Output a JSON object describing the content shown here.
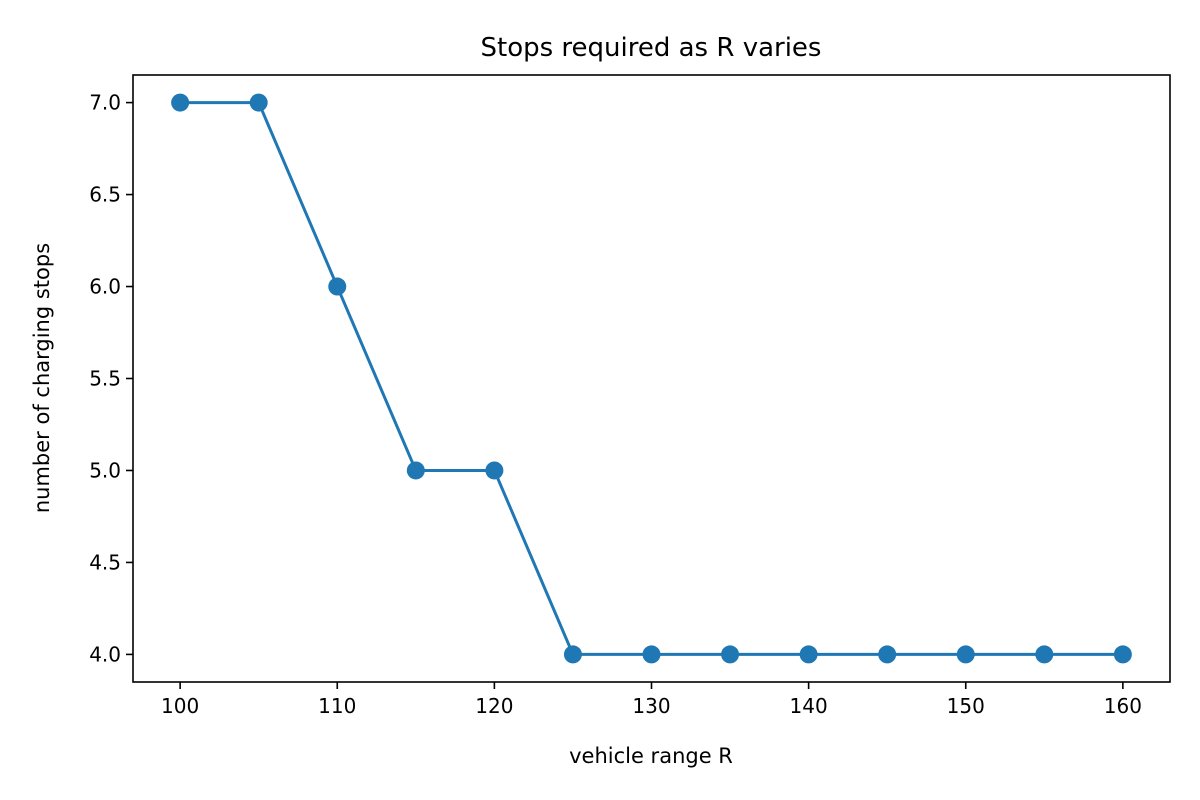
{
  "chart_data": {
    "type": "line",
    "title": "Stops required as R varies",
    "xlabel": "vehicle range R",
    "ylabel": "number of charging stops",
    "xlim": [
      97,
      163
    ],
    "ylim": [
      3.85,
      7.15
    ],
    "xticks": [
      100,
      110,
      120,
      130,
      140,
      150,
      160
    ],
    "xtick_labels": [
      "100",
      "110",
      "120",
      "130",
      "140",
      "150",
      "160"
    ],
    "yticks": [
      4.0,
      4.5,
      5.0,
      5.5,
      6.0,
      6.5,
      7.0
    ],
    "ytick_labels": [
      "4.0",
      "4.5",
      "5.0",
      "5.5",
      "6.0",
      "6.5",
      "7.0"
    ],
    "grid": false,
    "series": [
      {
        "color": "#1f77b4",
        "marker": "circle",
        "x": [
          100,
          105,
          110,
          115,
          120,
          125,
          130,
          135,
          140,
          145,
          150,
          155,
          160
        ],
        "y": [
          7,
          7,
          6,
          5,
          5,
          4,
          4,
          4,
          4,
          4,
          4,
          4,
          4
        ]
      }
    ]
  }
}
